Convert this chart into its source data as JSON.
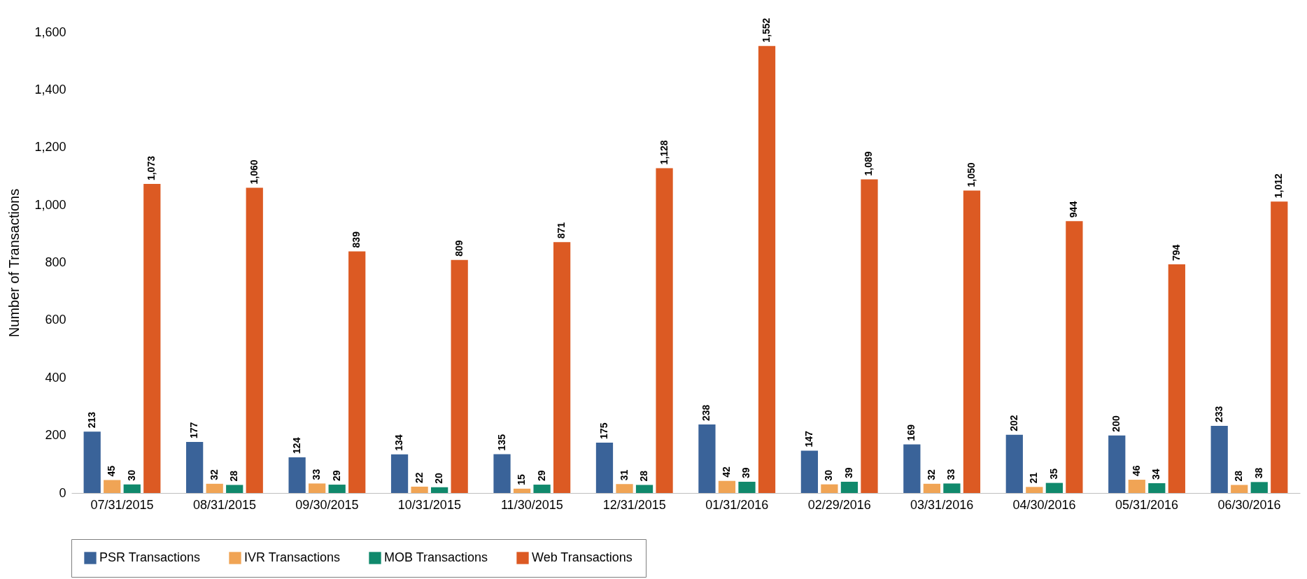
{
  "chart_data": {
    "type": "bar",
    "ylabel": "Number of Transactions",
    "categories": [
      "07/31/2015",
      "08/31/2015",
      "09/30/2015",
      "10/31/2015",
      "11/30/2015",
      "12/31/2015",
      "01/31/2016",
      "02/29/2016",
      "03/31/2016",
      "04/30/2016",
      "05/31/2016",
      "06/30/2016"
    ],
    "series": [
      {
        "name": "PSR Transactions",
        "color": "#3a6399",
        "values": [
          213,
          177,
          124,
          134,
          135,
          175,
          238,
          147,
          169,
          202,
          200,
          233
        ],
        "value_labels": [
          "213",
          "177",
          "124",
          "134",
          "135",
          "175",
          "238",
          "147",
          "169",
          "202",
          "200",
          "233"
        ]
      },
      {
        "name": "IVR Transactions",
        "color": "#f0a455",
        "values": [
          45,
          32,
          33,
          22,
          15,
          31,
          42,
          30,
          32,
          21,
          46,
          28
        ],
        "value_labels": [
          "45",
          "32",
          "33",
          "22",
          "15",
          "31",
          "42",
          "30",
          "32",
          "21",
          "46",
          "28"
        ]
      },
      {
        "name": "MOB Transactions",
        "color": "#10896c",
        "values": [
          30,
          28,
          29,
          20,
          29,
          28,
          39,
          39,
          33,
          35,
          34,
          38
        ],
        "value_labels": [
          "30",
          "28",
          "29",
          "20",
          "29",
          "28",
          "39",
          "39",
          "33",
          "35",
          "34",
          "38"
        ]
      },
      {
        "name": "Web Transactions",
        "color": "#dc5a23",
        "values": [
          1073,
          1060,
          839,
          809,
          871,
          1128,
          1552,
          1089,
          1050,
          944,
          794,
          1012
        ],
        "value_labels": [
          "1,073",
          "1,060",
          "839",
          "809",
          "871",
          "1,128",
          "1,552",
          "1,089",
          "1,050",
          "944",
          "794",
          "1,012"
        ]
      }
    ],
    "ylim": [
      0,
      1600
    ],
    "yticks": [
      0,
      {
        "value": 200,
        "label": "200"
      },
      {
        "value": 400,
        "label": "400"
      },
      {
        "value": 600,
        "label": "600"
      },
      {
        "value": 800,
        "label": "800"
      },
      {
        "value": 1000,
        "label": "1,000"
      },
      {
        "value": 1200,
        "label": "1,200"
      },
      {
        "value": 1400,
        "label": "1,400"
      },
      {
        "value": 1600,
        "label": "1,600"
      }
    ],
    "legend": "bottom",
    "grid": false
  }
}
